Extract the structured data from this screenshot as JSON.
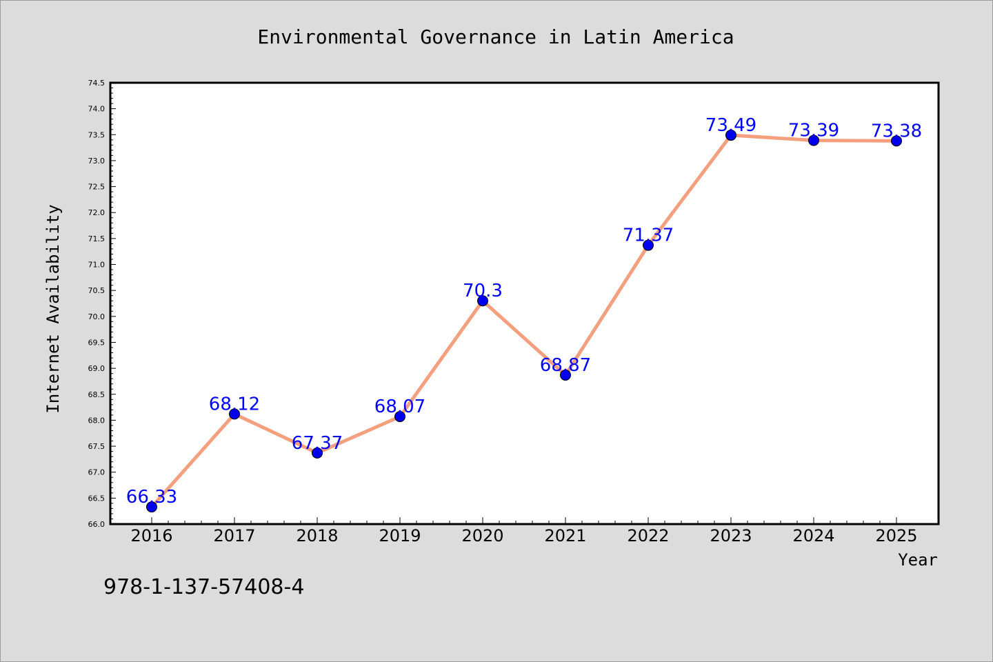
{
  "chart_data": {
    "type": "line",
    "title": "Environmental Governance in Latin America",
    "xlabel": "Year",
    "ylabel": "Internet Availability",
    "x": [
      "2016",
      "2017",
      "2018",
      "2019",
      "2020",
      "2021",
      "2022",
      "2023",
      "2024",
      "2025"
    ],
    "series": [
      {
        "values": [
          66.33,
          68.12,
          67.37,
          68.07,
          70.3,
          68.87,
          71.37,
          73.49,
          73.39,
          73.38
        ],
        "value_labels": [
          "66.33",
          "68.12",
          "67.37",
          "68.07",
          "70.3",
          "68.87",
          "71.37",
          "73.49",
          "73.39",
          "73.38"
        ],
        "line_color": "#f4a07e",
        "marker_color": "#0000ee"
      }
    ],
    "ylim": [
      66.0,
      74.5
    ],
    "ytick_step": 0.5,
    "grid": false,
    "label_color": "#0000ff"
  },
  "annotation": "978-1-137-57408-4"
}
